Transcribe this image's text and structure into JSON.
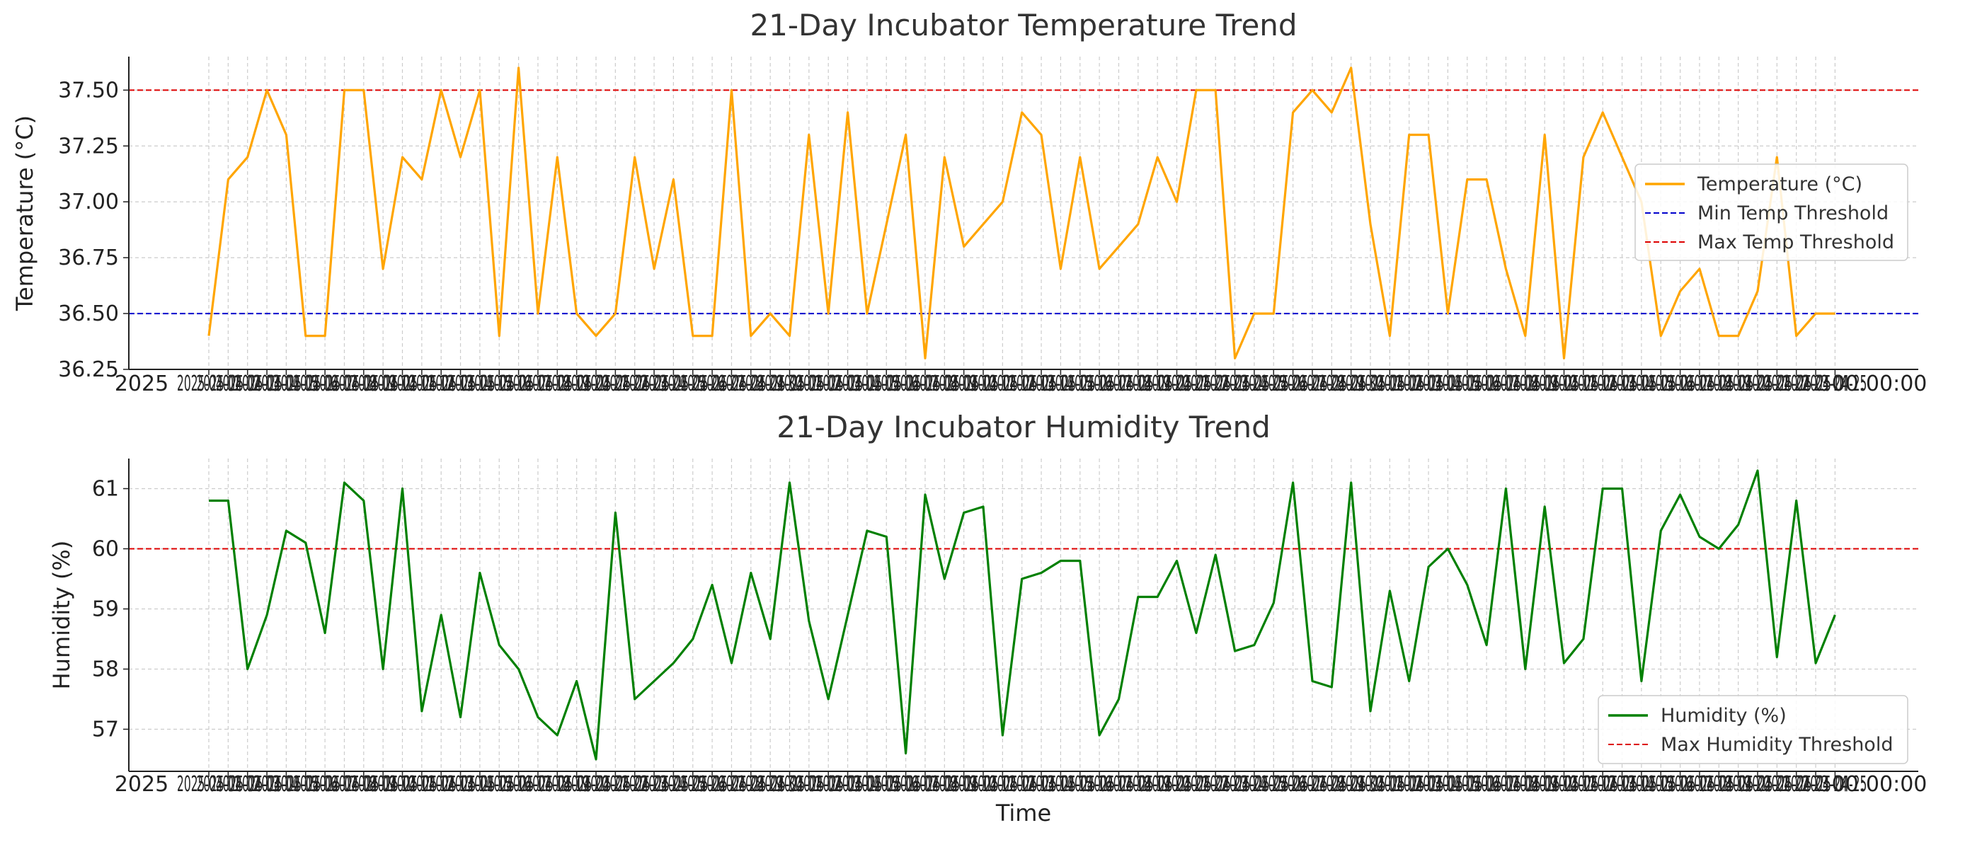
{
  "chart_data": [
    {
      "type": "line",
      "title": "21-Day Incubator Temperature Trend",
      "xlabel": "",
      "ylabel": "Temperature (°C)",
      "ylim": [
        36.25,
        37.65
      ],
      "yticks": [
        "36.25",
        "36.50",
        "36.75",
        "37.00",
        "37.25",
        "37.50"
      ],
      "grid": true,
      "legend_position": "center-right",
      "x_tick_label_pattern": "2025-04-",
      "x_tick_label_tail": "00:00:00",
      "series": [
        {
          "name": "Temperature (°C)",
          "color": "#ffa500",
          "style": "solid",
          "values": [
            36.4,
            37.1,
            37.2,
            37.5,
            37.3,
            36.4,
            36.4,
            37.5,
            37.5,
            36.7,
            37.2,
            37.1,
            37.5,
            37.2,
            37.5,
            36.4,
            37.6,
            36.5,
            37.2,
            36.5,
            36.4,
            36.5,
            37.2,
            36.7,
            37.1,
            36.4,
            36.4,
            37.5,
            36.4,
            36.5,
            36.4,
            37.3,
            36.5,
            37.4,
            36.5,
            36.9,
            37.3,
            36.3,
            37.2,
            36.8,
            36.9,
            37.0,
            37.4,
            37.3,
            36.7,
            37.2,
            36.7,
            36.8,
            36.9,
            37.2,
            37.0,
            37.5,
            37.5,
            36.3,
            36.5,
            36.5,
            37.4,
            37.5,
            37.4,
            37.6,
            36.9,
            36.4,
            37.3,
            37.3,
            36.5,
            37.1,
            37.1,
            36.7,
            36.4,
            37.3,
            36.3,
            37.2,
            37.4,
            37.2,
            37.0,
            36.4,
            36.6,
            36.7,
            36.4,
            36.4,
            36.6,
            37.2,
            36.4,
            36.5,
            36.5
          ]
        },
        {
          "name": "Min Temp Threshold",
          "color": "#0000cc",
          "style": "dashed",
          "value": 36.5
        },
        {
          "name": "Max Temp Threshold",
          "color": "#dd0000",
          "style": "dashed",
          "value": 37.5
        }
      ]
    },
    {
      "type": "line",
      "title": "21-Day Incubator Humidity Trend",
      "xlabel": "Time",
      "ylabel": "Humidity (%)",
      "ylim": [
        56.3,
        61.5
      ],
      "yticks": [
        "57",
        "58",
        "59",
        "60",
        "61"
      ],
      "grid": true,
      "legend_position": "lower-right",
      "x_tick_label_pattern": "2025-04-",
      "x_tick_label_tail": "00:00:00",
      "series": [
        {
          "name": "Humidity (%)",
          "color": "#008000",
          "style": "solid",
          "values": [
            60.8,
            60.8,
            58.0,
            58.9,
            60.3,
            60.1,
            58.6,
            61.1,
            60.8,
            58.0,
            61.0,
            57.3,
            58.9,
            57.2,
            59.6,
            58.4,
            58.0,
            57.2,
            56.9,
            57.8,
            56.5,
            60.6,
            57.5,
            57.8,
            58.1,
            58.5,
            59.4,
            58.1,
            59.6,
            58.5,
            61.1,
            58.8,
            57.5,
            58.9,
            60.3,
            60.2,
            56.6,
            60.9,
            59.5,
            60.6,
            60.7,
            56.9,
            59.5,
            59.6,
            59.8,
            59.8,
            56.9,
            57.5,
            59.2,
            59.2,
            59.8,
            58.6,
            59.9,
            58.3,
            58.4,
            59.1,
            61.1,
            57.8,
            57.7,
            61.1,
            57.3,
            59.3,
            57.8,
            59.7,
            60.0,
            59.4,
            58.4,
            61.0,
            58.0,
            60.7,
            58.1,
            58.5,
            61.0,
            61.0,
            57.8,
            60.3,
            60.9,
            60.2,
            60.0,
            60.4,
            61.3,
            58.2,
            60.8,
            58.1,
            58.9
          ]
        },
        {
          "name": "Max Humidity Threshold",
          "color": "#dd0000",
          "style": "dashed",
          "value": 60
        }
      ]
    }
  ]
}
